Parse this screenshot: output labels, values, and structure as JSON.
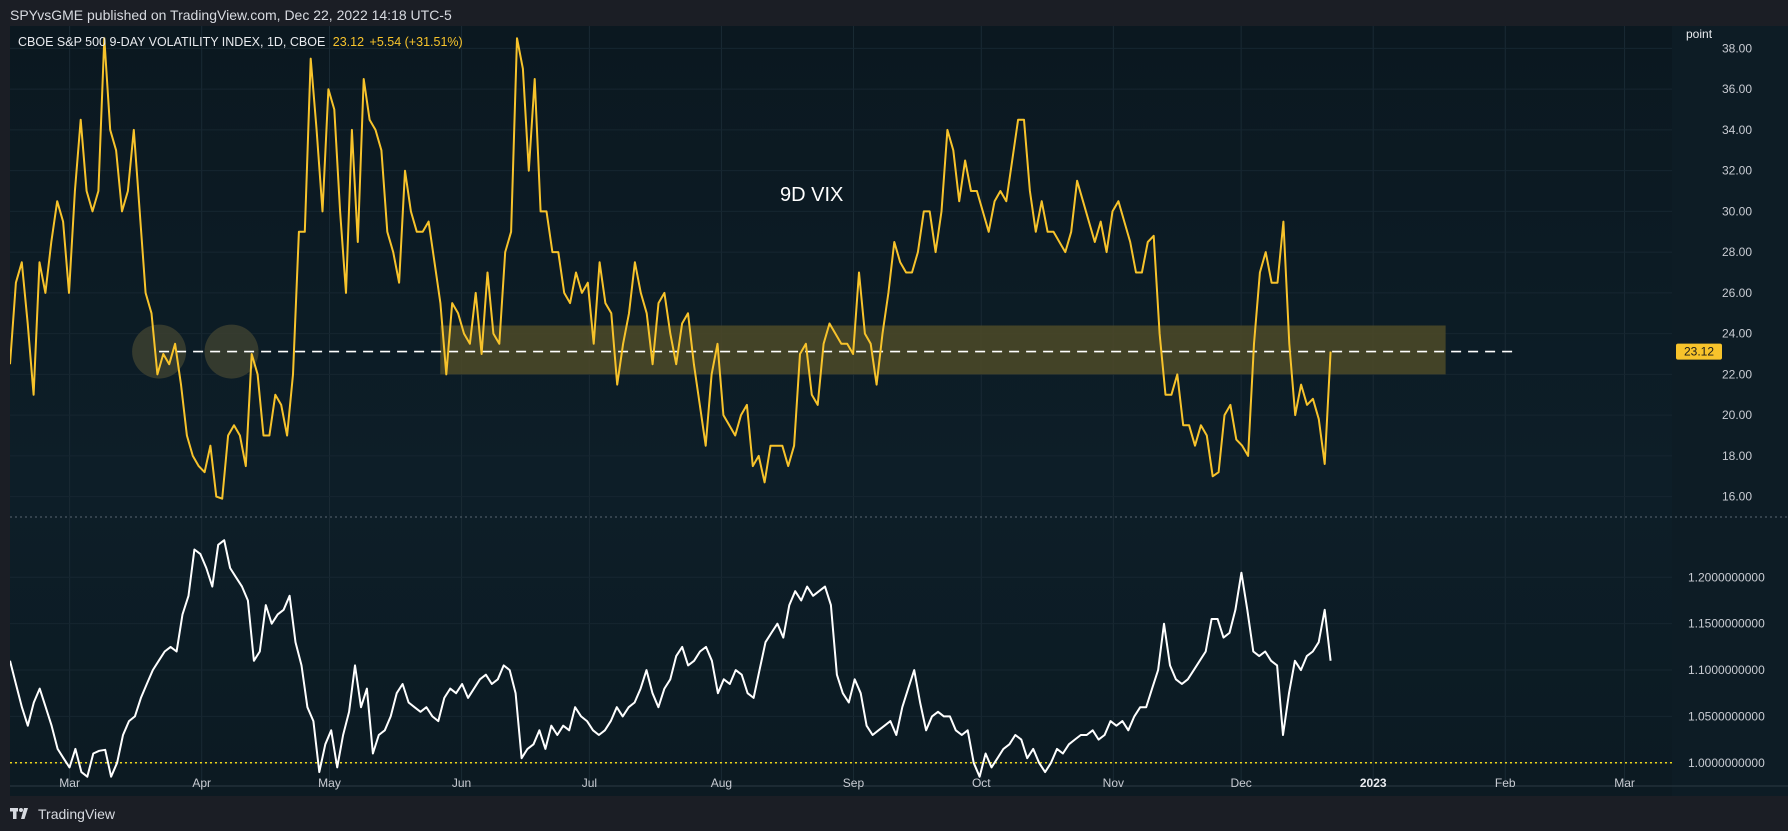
{
  "header": {
    "text": "SPYvsGME published on TradingView.com, Dec 22, 2022 14:18 UTC-5"
  },
  "footer": {
    "brand": "TradingView",
    "logo_icon": "tradingview-logo-icon"
  },
  "legend": {
    "symbol": "CBOE S&P 500 9-DAY VOLATILITY INDEX, 1D, CBOE",
    "value": "23.12",
    "change": "+5.54 (+31.51%)"
  },
  "annotation": {
    "text": "9D VIX"
  },
  "colors": {
    "background": "#0d1c25",
    "vix_line": "#f7c32b",
    "ratio_line": "#ffffff",
    "zone_fill": "#4d4a28",
    "dashed_level": "#ffffff",
    "dotted_baseline": "#e6d21a",
    "circle_fill": "#3c4030"
  },
  "chart_data": [
    {
      "type": "line",
      "name": "9D VIX",
      "title": "CBOE S&P 500 9-DAY VOLATILITY INDEX, 1D, CBOE",
      "unit_label": "point",
      "ylim": [
        15.0,
        39.1
      ],
      "yticks": [
        "16.00",
        "18.00",
        "20.00",
        "22.00",
        "24.00",
        "26.00",
        "28.00",
        "30.00",
        "32.00",
        "34.00",
        "36.00",
        "38.00"
      ],
      "last_value": 23.12,
      "last_value_label": "23.12",
      "reference_level": 23.12,
      "highlight_zone": {
        "y_from": 22.0,
        "y_to": 24.4,
        "x_from": "May 27",
        "x_to": "Jan 18"
      },
      "marked_points": [
        "Mar 22",
        "Apr 8"
      ],
      "x_months": [
        "Mar",
        "Apr",
        "May",
        "Jun",
        "Jul",
        "Aug",
        "Sep",
        "Oct",
        "Nov",
        "Dec",
        "2023",
        "Feb",
        "Mar"
      ],
      "series": [
        {
          "name": "9D VIX",
          "start_date": "2022-02-15",
          "end_date": "2022-12-22",
          "values": [
            22.5,
            26.5,
            27.5,
            24.5,
            21.0,
            27.5,
            26.0,
            28.5,
            30.5,
            29.5,
            26.0,
            31.0,
            34.5,
            31.0,
            30.0,
            31.0,
            38.5,
            34.0,
            33.0,
            30.0,
            31.0,
            34.0,
            30.0,
            26.0,
            25.0,
            22.0,
            23.0,
            22.5,
            23.5,
            21.5,
            19.0,
            18.0,
            17.5,
            17.2,
            18.5,
            16.0,
            15.9,
            19.0,
            19.5,
            19.0,
            17.5,
            23.0,
            22.0,
            19.0,
            19.0,
            21.0,
            20.5,
            19.0,
            22.0,
            29.0,
            29.0,
            37.5,
            34.0,
            30.0,
            36.0,
            35.0,
            30.0,
            26.0,
            34.0,
            28.5,
            36.5,
            34.5,
            34.0,
            33.0,
            29.0,
            28.0,
            26.5,
            32.0,
            30.0,
            29.0,
            29.0,
            29.5,
            27.5,
            25.5,
            22.0,
            25.5,
            25.0,
            24.0,
            23.5,
            26.0,
            23.0,
            27.0,
            24.0,
            23.5,
            28.0,
            29.0,
            38.5,
            37.0,
            32.0,
            36.5,
            30.0,
            30.0,
            28.0,
            28.0,
            26.0,
            25.5,
            27.0,
            26.0,
            26.5,
            23.5,
            27.5,
            25.5,
            25.0,
            21.5,
            23.5,
            25.0,
            27.5,
            26.0,
            25.0,
            22.5,
            25.5,
            26.0,
            24.0,
            22.5,
            24.5,
            25.0,
            22.5,
            20.5,
            18.5,
            22.0,
            23.5,
            20.0,
            19.5,
            19.0,
            20.0,
            20.5,
            17.5,
            18.0,
            16.7,
            18.5,
            18.5,
            18.5,
            17.5,
            18.5,
            23.0,
            23.5,
            21.0,
            20.5,
            23.5,
            24.5,
            24.0,
            23.5,
            23.5,
            23.0,
            27.0,
            24.0,
            23.5,
            21.5,
            24.0,
            26.0,
            28.5,
            27.5,
            27.0,
            27.0,
            28.0,
            30.0,
            30.0,
            28.0,
            30.0,
            34.0,
            33.0,
            30.5,
            32.5,
            31.0,
            31.0,
            30.0,
            29.0,
            30.5,
            31.0,
            30.5,
            32.5,
            34.5,
            34.5,
            31.0,
            29.0,
            30.5,
            29.0,
            29.0,
            28.5,
            28.0,
            29.0,
            31.5,
            30.5,
            29.5,
            28.5,
            29.5,
            28.0,
            30.0,
            30.5,
            29.5,
            28.5,
            27.0,
            27.0,
            28.5,
            28.8,
            24.0,
            21.0,
            21.0,
            22.0,
            19.5,
            19.5,
            18.5,
            19.5,
            19.0,
            17.0,
            17.2,
            20.0,
            20.5,
            18.8,
            18.5,
            18.0,
            23.5,
            27.0,
            28.0,
            26.5,
            26.5,
            29.5,
            23.5,
            20.0,
            21.5,
            20.5,
            20.8,
            19.8,
            17.6,
            23.12
          ]
        }
      ]
    },
    {
      "type": "line",
      "name": "SPY vs GME ratio",
      "ylim": [
        0.975,
        1.265
      ],
      "yticks": [
        "1.0000000000",
        "1.0500000000",
        "1.1000000000",
        "1.1500000000",
        "1.2000000000"
      ],
      "baseline_level": 1.0,
      "series": [
        {
          "name": "ratio",
          "start_date": "2022-02-15",
          "end_date": "2022-12-22",
          "values": [
            1.11,
            1.085,
            1.06,
            1.04,
            1.065,
            1.08,
            1.06,
            1.04,
            1.015,
            1.005,
            0.995,
            1.015,
            0.99,
            0.985,
            1.01,
            1.013,
            1.014,
            0.985,
            1.0,
            1.03,
            1.045,
            1.05,
            1.07,
            1.085,
            1.1,
            1.11,
            1.12,
            1.125,
            1.12,
            1.16,
            1.18,
            1.23,
            1.225,
            1.21,
            1.19,
            1.235,
            1.24,
            1.21,
            1.2,
            1.19,
            1.175,
            1.11,
            1.12,
            1.17,
            1.15,
            1.16,
            1.165,
            1.18,
            1.13,
            1.105,
            1.06,
            1.045,
            0.99,
            1.02,
            1.035,
            0.995,
            1.03,
            1.055,
            1.105,
            1.06,
            1.08,
            1.01,
            1.03,
            1.035,
            1.05,
            1.075,
            1.085,
            1.065,
            1.06,
            1.055,
            1.06,
            1.05,
            1.045,
            1.07,
            1.08,
            1.075,
            1.085,
            1.07,
            1.08,
            1.09,
            1.095,
            1.085,
            1.09,
            1.105,
            1.1,
            1.075,
            1.005,
            1.015,
            1.02,
            1.035,
            1.015,
            1.04,
            1.03,
            1.04,
            1.035,
            1.06,
            1.05,
            1.045,
            1.035,
            1.03,
            1.035,
            1.045,
            1.06,
            1.05,
            1.06,
            1.065,
            1.08,
            1.1,
            1.075,
            1.06,
            1.08,
            1.09,
            1.115,
            1.125,
            1.105,
            1.11,
            1.12,
            1.125,
            1.11,
            1.075,
            1.09,
            1.085,
            1.1,
            1.095,
            1.075,
            1.07,
            1.1,
            1.13,
            1.14,
            1.15,
            1.135,
            1.17,
            1.185,
            1.175,
            1.19,
            1.18,
            1.185,
            1.19,
            1.17,
            1.095,
            1.075,
            1.065,
            1.09,
            1.075,
            1.04,
            1.03,
            1.035,
            1.04,
            1.045,
            1.03,
            1.06,
            1.08,
            1.1,
            1.065,
            1.035,
            1.05,
            1.055,
            1.05,
            1.05,
            1.035,
            1.03,
            1.035,
            1.0,
            0.985,
            1.01,
            0.995,
            1.005,
            1.015,
            1.02,
            1.03,
            1.025,
            1.005,
            1.015,
            1.0,
            0.99,
            1.0,
            1.015,
            1.01,
            1.02,
            1.025,
            1.03,
            1.03,
            1.035,
            1.025,
            1.03,
            1.045,
            1.04,
            1.045,
            1.035,
            1.05,
            1.06,
            1.06,
            1.08,
            1.1,
            1.15,
            1.105,
            1.09,
            1.085,
            1.09,
            1.1,
            1.11,
            1.12,
            1.155,
            1.155,
            1.135,
            1.14,
            1.165,
            1.205,
            1.165,
            1.12,
            1.115,
            1.12,
            1.11,
            1.105,
            1.03,
            1.075,
            1.11,
            1.1,
            1.115,
            1.12,
            1.13,
            1.165,
            1.11
          ]
        }
      ]
    }
  ]
}
